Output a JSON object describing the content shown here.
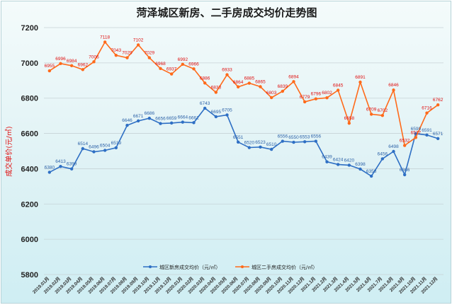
{
  "chart_data": {
    "type": "line",
    "title": "菏泽城区新房、二手房成交均价走势图",
    "ylabel": "成交单价(元/㎡)",
    "xlabel": "",
    "ylim": [
      5800,
      7200
    ],
    "yticks": [
      5800,
      6000,
      6200,
      6400,
      6600,
      6800,
      7000,
      7200
    ],
    "grid": true,
    "legend_position": "bottom",
    "categories": [
      "2019.01月",
      "2019.02月",
      "2019.03月",
      "2019.04月",
      "2019.05月",
      "2019.06月",
      "2019.07月",
      "2019.08月",
      "2019.09月",
      "2019.10月",
      "2019.11月",
      "2019.12月",
      "2020.01月",
      "2020.02月",
      "2020.03月",
      "2020.04月",
      "2020.05月",
      "2020.06月",
      "2020.07月",
      "2020.08月",
      "2020.09月",
      "2020.10月",
      "2020.11月",
      "2020.12月",
      "2021.1月",
      "2021.2月",
      "2021.3月",
      "2021.4月",
      "2021.5月",
      "2021.6月",
      "2021.7月",
      "2021.8月",
      "2021.9月",
      "2021.10月",
      "2021.11月",
      "2021.12月"
    ],
    "series": [
      {
        "name": "城区新房成交均价（元/㎡）",
        "color": "#2e6fc4",
        "values": [
          6380,
          6413,
          6399,
          6514,
          6496,
          6504,
          6519,
          6646,
          6671,
          6686,
          6656,
          6659,
          6664,
          6661,
          6743,
          6695,
          6705,
          6551,
          6520,
          6523,
          6510,
          6556,
          6550,
          6553,
          6556,
          6439,
          6424,
          6420,
          6398,
          6358,
          6456,
          6498,
          6366,
          6599,
          6591,
          6571
        ],
        "labels": [
          "6380",
          "6413",
          "6399",
          "6514",
          "6496",
          "6504",
          "6519",
          "6646",
          "6671",
          "6686",
          "6656",
          "6659",
          "6664",
          "6661",
          "6743",
          "6695",
          "6705",
          "6551",
          "6520",
          "6523",
          "6510",
          "6556",
          "6550",
          "6553",
          "6556",
          "6439",
          "6424",
          "6420",
          "6398",
          "6358",
          "6456",
          "6498",
          "6366",
          "6599",
          "6591",
          "6571"
        ]
      },
      {
        "name": "城区二手房成交均价（元/㎡）",
        "color": "#ff6a1a",
        "values": [
          6955,
          6996,
          6984,
          6962,
          7006,
          7118,
          7043,
          7029,
          7102,
          7029,
          6968,
          6937,
          6992,
          6966,
          6886,
          6833,
          6933,
          6864,
          6885,
          6865,
          6803,
          6839,
          6894,
          6779,
          6796,
          6802,
          6845,
          6658,
          6891,
          6709,
          6702,
          6846,
          6532,
          6577,
          6716,
          6762
        ],
        "labels": [
          "6955",
          "6996",
          "6984",
          "6962",
          "7006",
          "7118",
          "7043",
          "7029",
          "7102",
          "7029",
          "6968",
          "6937",
          "6992",
          "6966",
          "6886",
          "6833",
          "6933",
          "6864",
          "6885",
          "6865",
          "6803",
          "6839",
          "6894",
          "6779",
          "6796",
          "6802",
          "6845",
          "6658",
          "6891",
          "6709",
          "6702",
          "6846",
          "6532",
          "6577",
          "6716",
          "6762"
        ]
      }
    ]
  }
}
